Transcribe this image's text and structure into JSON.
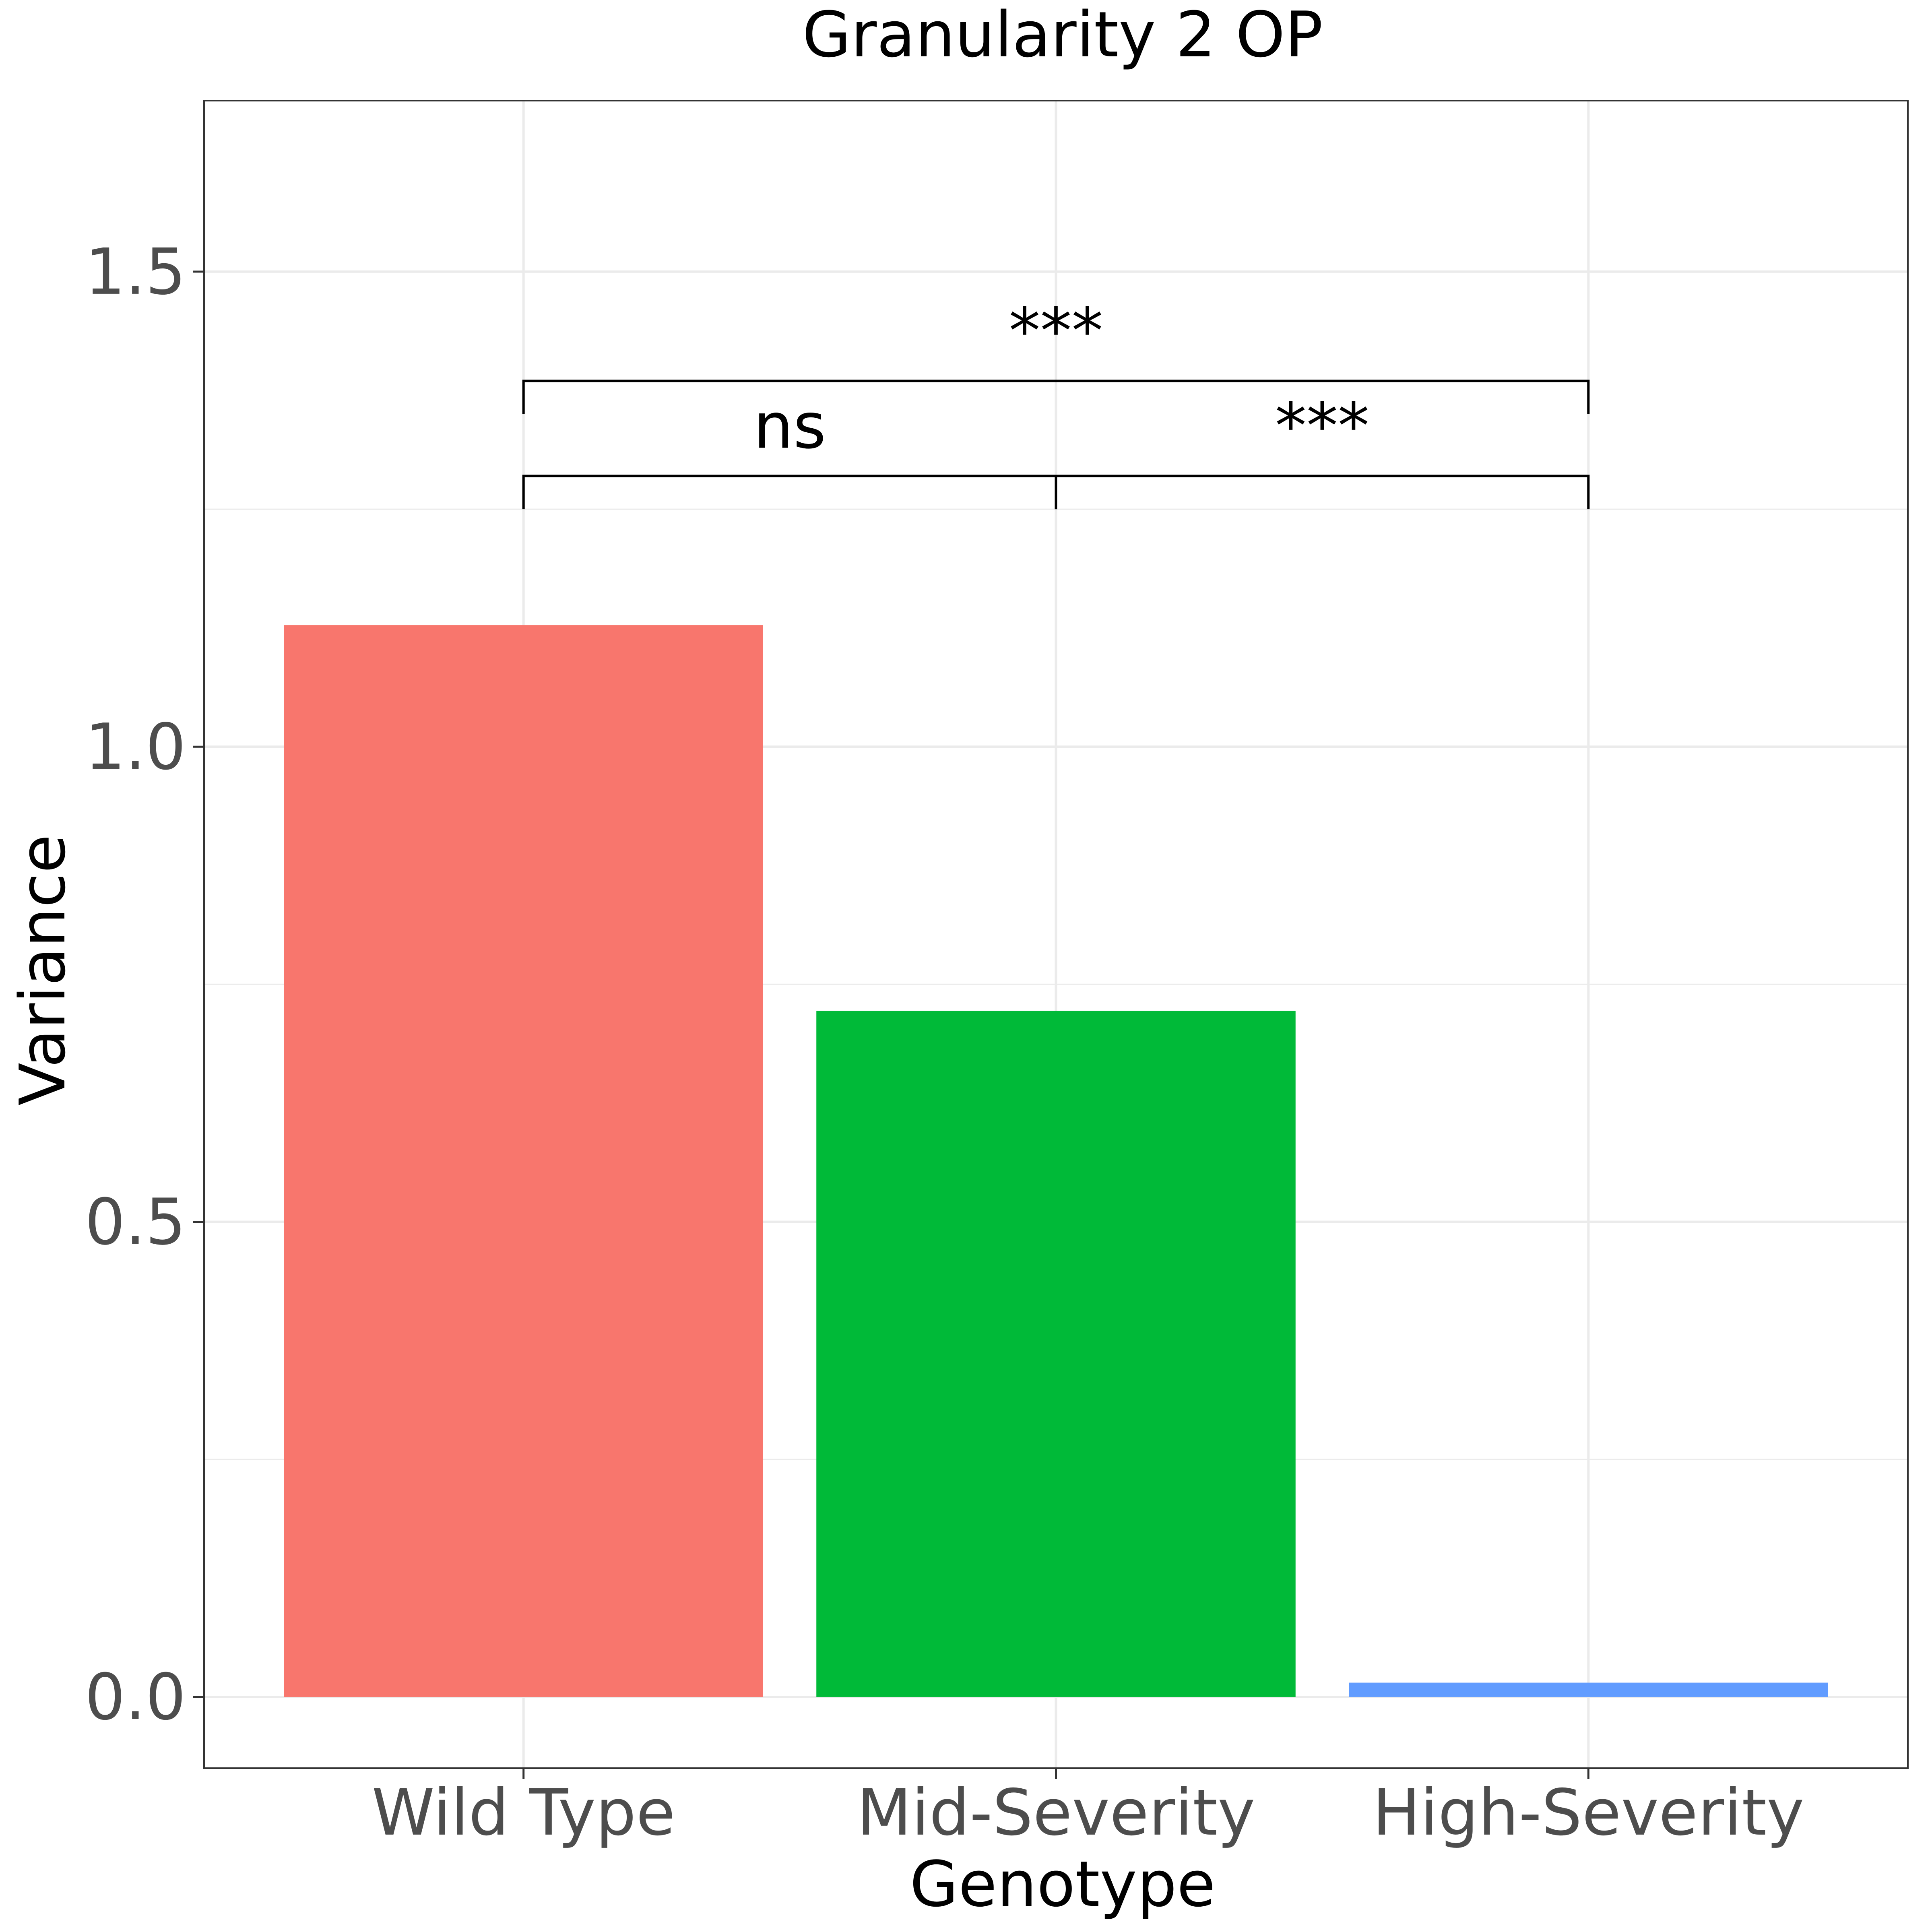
{
  "chart_data": {
    "type": "bar",
    "title": "Granularity 2 OP",
    "xlabel": "Genotype",
    "ylabel": "Variance",
    "categories": [
      "Wild Type",
      "Mid-Severity",
      "High-Severity"
    ],
    "values": [
      1.128,
      0.722,
      0.015
    ],
    "colors": [
      "#F8766D",
      "#00BA38",
      "#619CFF"
    ],
    "ylim": [
      -0.075,
      1.68
    ],
    "yticks": [
      0.0,
      0.5,
      1.0,
      1.5
    ],
    "ytick_labels": [
      "0.0",
      "0.5",
      "1.0",
      "1.5"
    ],
    "grid": true,
    "legend": "none",
    "annotations": [
      {
        "from": 0,
        "to": 1,
        "label": "ns",
        "y": 1.285,
        "tip": 1.25
      },
      {
        "from": 1,
        "to": 2,
        "label": "***",
        "y": 1.285,
        "tip": 1.25
      },
      {
        "from": 0,
        "to": 2,
        "label": "***",
        "y": 1.385,
        "tip": 1.35
      }
    ]
  }
}
